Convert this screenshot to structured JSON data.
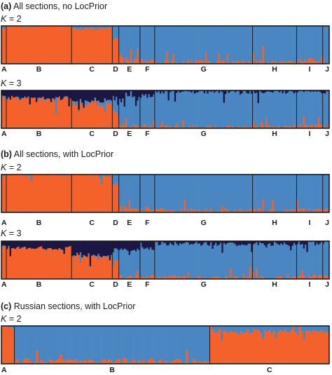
{
  "colors": {
    "cluster1": "#f4612a",
    "cluster2": "#4a87c2",
    "cluster3": "#1c1645",
    "frame": "#1a1a1a",
    "divider": "#1a1a1a"
  },
  "panels": [
    {
      "title_letter": "(a)",
      "title_text": " All sections, no LocPrior",
      "rows": [
        {
          "k_label": "K",
          "k_value": " = 2",
          "sections": [
            "A",
            "B",
            "C",
            "D",
            "E",
            "F",
            "G",
            "H",
            "I",
            "J"
          ],
          "dividers_after": [
            "A",
            "C",
            "D",
            "E",
            "F",
            "G",
            "H",
            "I"
          ]
        },
        {
          "k_label": "K",
          "k_value": " = 3",
          "sections": [
            "A",
            "B",
            "C",
            "D",
            "E",
            "F",
            "G",
            "H",
            "I",
            "J"
          ],
          "dividers_after": [
            "A",
            "C",
            "D",
            "E",
            "F",
            "G",
            "H",
            "I"
          ]
        }
      ]
    },
    {
      "title_letter": "(b)",
      "title_text": " All sections, with LocPrior",
      "rows": [
        {
          "k_label": "K",
          "k_value": " = 2",
          "sections": [
            "A",
            "B",
            "C",
            "D",
            "E",
            "F",
            "G",
            "H",
            "I",
            "J"
          ],
          "dividers_after": [
            "A",
            "B",
            "D",
            "E",
            "F",
            "G",
            "H",
            "I"
          ]
        },
        {
          "k_label": "K",
          "k_value": " = 3",
          "sections": [
            "A",
            "B",
            "C",
            "D",
            "E",
            "F",
            "G",
            "H",
            "I",
            "J"
          ],
          "dividers_after": [
            "A",
            "B",
            "D",
            "E",
            "F",
            "G",
            "H",
            "I"
          ]
        }
      ]
    },
    {
      "title_letter": "(c)",
      "title_text": " Russian sections, with LocPrior",
      "rows": [
        {
          "k_label": "K",
          "k_value": " = 2",
          "sections": [
            "A",
            "B",
            "C"
          ],
          "dividers_after": [
            "A",
            "B"
          ]
        }
      ]
    }
  ],
  "chart_data": [
    {
      "type": "bar",
      "stacked": true,
      "ylim": [
        0,
        1
      ],
      "categories": [
        "A",
        "B",
        "C",
        "D",
        "E",
        "F",
        "G",
        "H",
        "I",
        "J"
      ],
      "sample_counts": [
        3,
        40,
        25,
        4,
        13,
        9,
        60,
        27,
        16,
        4
      ],
      "series": [
        {
          "color": "cluster1",
          "section_means": [
            0.95,
            1.0,
            0.93,
            0.65,
            0.12,
            0.1,
            0.04,
            0.04,
            0.08,
            0.05
          ]
        },
        {
          "color": "cluster2",
          "section_means": [
            0.05,
            0.0,
            0.07,
            0.35,
            0.88,
            0.9,
            0.96,
            0.96,
            0.92,
            0.95
          ]
        }
      ],
      "k": 2
    },
    {
      "type": "bar",
      "stacked": true,
      "ylim": [
        0,
        1
      ],
      "categories": [
        "A",
        "B",
        "C",
        "D",
        "E",
        "F",
        "G",
        "H",
        "I",
        "J"
      ],
      "sample_counts": [
        3,
        40,
        25,
        4,
        13,
        9,
        60,
        27,
        16,
        4
      ],
      "series": [
        {
          "color": "cluster1",
          "section_means": [
            0.85,
            0.78,
            0.62,
            0.45,
            0.06,
            0.05,
            0.02,
            0.03,
            0.06,
            0.04
          ]
        },
        {
          "color": "cluster2",
          "section_means": [
            0.05,
            0.02,
            0.08,
            0.35,
            0.74,
            0.8,
            0.94,
            0.93,
            0.9,
            0.94
          ]
        },
        {
          "color": "cluster3",
          "section_means": [
            0.1,
            0.2,
            0.3,
            0.2,
            0.2,
            0.15,
            0.04,
            0.04,
            0.04,
            0.02
          ]
        }
      ],
      "k": 3
    },
    {
      "type": "bar",
      "stacked": true,
      "ylim": [
        0,
        1
      ],
      "categories": [
        "A",
        "B",
        "C",
        "D",
        "E",
        "F",
        "G",
        "H",
        "I",
        "J"
      ],
      "sample_counts": [
        3,
        40,
        25,
        4,
        13,
        9,
        60,
        27,
        16,
        4
      ],
      "series": [
        {
          "color": "cluster1",
          "section_means": [
            0.97,
            1.0,
            0.98,
            0.75,
            0.12,
            0.08,
            0.05,
            0.04,
            0.05,
            0.05
          ]
        },
        {
          "color": "cluster2",
          "section_means": [
            0.03,
            0.0,
            0.02,
            0.25,
            0.88,
            0.92,
            0.95,
            0.96,
            0.95,
            0.95
          ]
        }
      ],
      "k": 2
    },
    {
      "type": "bar",
      "stacked": true,
      "ylim": [
        0,
        1
      ],
      "categories": [
        "A",
        "B",
        "C",
        "D",
        "E",
        "F",
        "G",
        "H",
        "I",
        "J"
      ],
      "sample_counts": [
        3,
        40,
        25,
        4,
        13,
        9,
        60,
        27,
        16,
        4
      ],
      "series": [
        {
          "color": "cluster1",
          "section_means": [
            0.9,
            0.82,
            0.6,
            0.5,
            0.06,
            0.05,
            0.02,
            0.02,
            0.05,
            0.04
          ]
        },
        {
          "color": "cluster2",
          "section_means": [
            0.02,
            0.0,
            0.02,
            0.3,
            0.7,
            0.75,
            0.9,
            0.9,
            0.9,
            0.92
          ]
        },
        {
          "color": "cluster3",
          "section_means": [
            0.08,
            0.18,
            0.38,
            0.2,
            0.24,
            0.2,
            0.08,
            0.08,
            0.05,
            0.04
          ]
        }
      ],
      "k": 3
    },
    {
      "type": "bar",
      "stacked": true,
      "ylim": [
        0,
        1
      ],
      "categories": [
        "A",
        "B",
        "C"
      ],
      "sample_counts": [
        6,
        90,
        55
      ],
      "series": [
        {
          "color": "cluster1",
          "section_means": [
            0.95,
            0.07,
            0.85
          ]
        },
        {
          "color": "cluster2",
          "section_means": [
            0.05,
            0.93,
            0.15
          ]
        }
      ],
      "k": 2
    }
  ]
}
